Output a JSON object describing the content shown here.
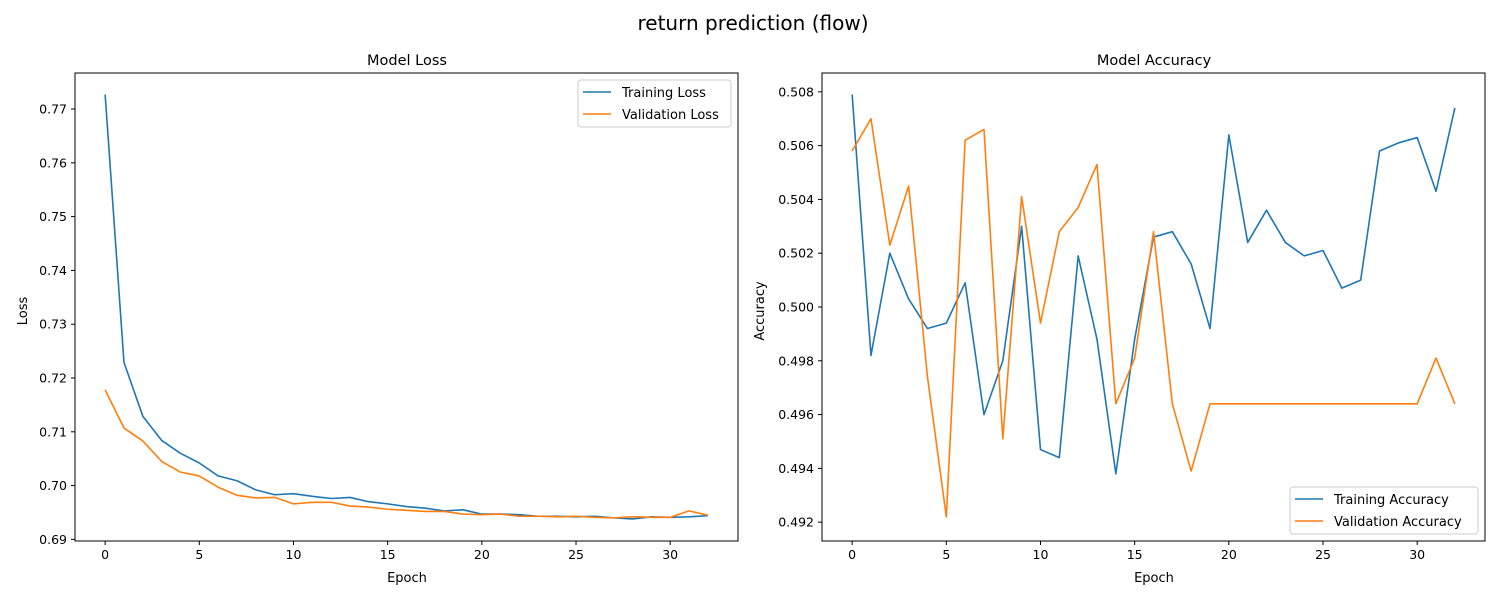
{
  "suptitle": "return prediction (flow)",
  "chart_data": [
    {
      "type": "line",
      "title": "Model Loss",
      "xlabel": "Epoch",
      "ylabel": "Loss",
      "xlim": [
        -1.6,
        33.6
      ],
      "ylim": [
        0.6897,
        0.7767
      ],
      "xticks": [
        0,
        5,
        10,
        15,
        20,
        25,
        30
      ],
      "yticks": [
        0.69,
        0.7,
        0.71,
        0.72,
        0.73,
        0.74,
        0.75,
        0.76,
        0.77
      ],
      "ytick_labels": [
        "0.69",
        "0.70",
        "0.71",
        "0.72",
        "0.73",
        "0.74",
        "0.75",
        "0.76",
        "0.77"
      ],
      "legend_position": "upper right",
      "x": [
        0,
        1,
        2,
        3,
        4,
        5,
        6,
        7,
        8,
        9,
        10,
        11,
        12,
        13,
        14,
        15,
        16,
        17,
        18,
        19,
        20,
        21,
        22,
        23,
        24,
        25,
        26,
        27,
        28,
        29,
        30,
        31,
        32
      ],
      "series": [
        {
          "name": "Training Loss",
          "color": "#1f77b4",
          "values": [
            0.7727,
            0.7229,
            0.7129,
            0.7084,
            0.706,
            0.7042,
            0.7018,
            0.7009,
            0.6992,
            0.6983,
            0.6985,
            0.698,
            0.6976,
            0.6978,
            0.697,
            0.6966,
            0.6961,
            0.6958,
            0.6953,
            0.6955,
            0.6947,
            0.6947,
            0.6946,
            0.6943,
            0.6943,
            0.6942,
            0.6943,
            0.694,
            0.6938,
            0.6942,
            0.6941,
            0.6942,
            0.6944
          ]
        },
        {
          "name": "Validation Loss",
          "color": "#ff7f0e",
          "values": [
            0.7178,
            0.7107,
            0.7083,
            0.7045,
            0.7025,
            0.7018,
            0.6997,
            0.6982,
            0.6977,
            0.6978,
            0.6966,
            0.6969,
            0.6969,
            0.6962,
            0.696,
            0.6956,
            0.6954,
            0.6952,
            0.6952,
            0.6947,
            0.6946,
            0.6947,
            0.6943,
            0.6943,
            0.6942,
            0.6943,
            0.6941,
            0.694,
            0.6942,
            0.6941,
            0.6941,
            0.6953,
            0.6945
          ]
        }
      ]
    },
    {
      "type": "line",
      "title": "Model Accuracy",
      "xlabel": "Epoch",
      "ylabel": "Accuracy",
      "xlim": [
        -1.6,
        33.6
      ],
      "ylim": [
        0.4913,
        0.5087
      ],
      "xticks": [
        0,
        5,
        10,
        15,
        20,
        25,
        30
      ],
      "yticks": [
        0.492,
        0.494,
        0.496,
        0.498,
        0.5,
        0.502,
        0.504,
        0.506,
        0.508
      ],
      "ytick_labels": [
        "0.492",
        "0.494",
        "0.496",
        "0.498",
        "0.500",
        "0.502",
        "0.504",
        "0.506",
        "0.508"
      ],
      "legend_position": "lower right",
      "x": [
        0,
        1,
        2,
        3,
        4,
        5,
        6,
        7,
        8,
        9,
        10,
        11,
        12,
        13,
        14,
        15,
        16,
        17,
        18,
        19,
        20,
        21,
        22,
        23,
        24,
        25,
        26,
        27,
        28,
        29,
        30,
        31,
        32
      ],
      "series": [
        {
          "name": "Training Accuracy",
          "color": "#1f77b4",
          "values": [
            0.5079,
            0.4982,
            0.502,
            0.5003,
            0.4992,
            0.4994,
            0.5009,
            0.496,
            0.498,
            0.503,
            0.4947,
            0.4944,
            0.5019,
            0.4988,
            0.4938,
            0.4988,
            0.5026,
            0.5028,
            0.5016,
            0.4992,
            0.5064,
            0.5024,
            0.5036,
            0.5024,
            0.5019,
            0.5021,
            0.5007,
            0.501,
            0.5058,
            0.5061,
            0.5063,
            0.5043,
            0.5074
          ]
        },
        {
          "name": "Validation Accuracy",
          "color": "#ff7f0e",
          "values": [
            0.5058,
            0.507,
            0.5023,
            0.5045,
            0.4974,
            0.4922,
            0.5062,
            0.5066,
            0.4951,
            0.5041,
            0.4994,
            0.5028,
            0.5037,
            0.5053,
            0.4964,
            0.4981,
            0.5028,
            0.4964,
            0.4939,
            0.4964,
            0.4964,
            0.4964,
            0.4964,
            0.4964,
            0.4964,
            0.4964,
            0.4964,
            0.4964,
            0.4964,
            0.4964,
            0.4964,
            0.4981,
            0.4964
          ]
        }
      ]
    }
  ]
}
